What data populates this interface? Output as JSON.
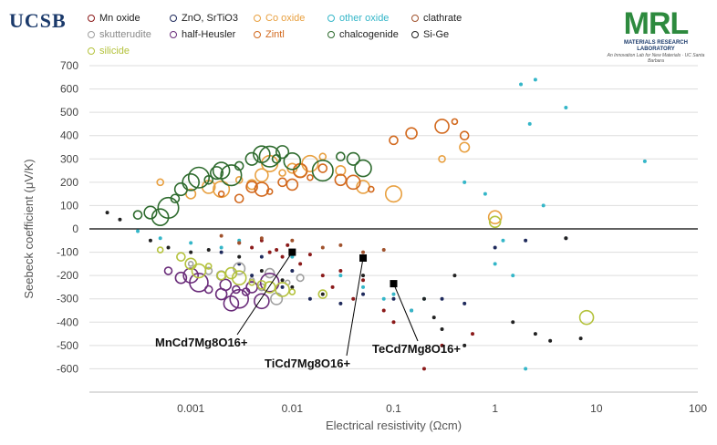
{
  "header": {
    "brand": "UCSB",
    "logo_text": "MRL",
    "logo_subtitle": "MATERIALS RESEARCH LABORATORY",
    "logo_tagline": "An Innovation Lab for New Materials · UC Santa Barbara"
  },
  "colors": {
    "Mn oxide": "#8b1a1a",
    "ZnO, SrTiO3": "#1f2a5c",
    "Co oxide": "#e8a040",
    "other oxide": "#35b6c8",
    "clathrate": "#a0522d",
    "skutterudite": "#a0a0a0",
    "half-Heusler": "#6a2c7a",
    "Zintl": "#d2691e",
    "chalcogenide": "#2e6b2e",
    "Si-Ge": "#222222",
    "silicide": "#b4c23c"
  },
  "chart_data": {
    "type": "scatter",
    "xlabel": "Electrical resistivity (Ωcm)",
    "ylabel": "Seebeck coefficient (μV/K)",
    "xscale": "log",
    "xlim": [
      0.0001,
      100
    ],
    "ylim": [
      -700,
      700
    ],
    "x_ticks": [
      "0.001",
      "0.01",
      "0.1",
      "1",
      "10",
      "100"
    ],
    "y_ticks": [
      700,
      600,
      500,
      400,
      300,
      200,
      100,
      0,
      -100,
      -200,
      -300,
      -400,
      -500,
      -600
    ],
    "legend_position": "top",
    "series": [
      {
        "name": "Mn oxide",
        "points": [
          [
            0.003,
            -60
          ],
          [
            0.004,
            -80
          ],
          [
            0.005,
            -50
          ],
          [
            0.006,
            -100
          ],
          [
            0.007,
            -90
          ],
          [
            0.008,
            -120
          ],
          [
            0.009,
            -70
          ],
          [
            0.012,
            -150
          ],
          [
            0.015,
            -110
          ],
          [
            0.02,
            -200
          ],
          [
            0.025,
            -250
          ],
          [
            0.03,
            -180
          ],
          [
            0.04,
            -300
          ],
          [
            0.05,
            -220
          ],
          [
            0.08,
            -350
          ],
          [
            0.1,
            -400
          ],
          [
            0.2,
            -600
          ],
          [
            0.3,
            -500
          ],
          [
            0.6,
            -450
          ]
        ]
      },
      {
        "name": "ZnO, SrTiO3",
        "points": [
          [
            0.002,
            -100
          ],
          [
            0.003,
            -150
          ],
          [
            0.004,
            -200
          ],
          [
            0.005,
            -120
          ],
          [
            0.008,
            -250
          ],
          [
            0.01,
            -180
          ],
          [
            0.015,
            -300
          ],
          [
            0.03,
            -320
          ],
          [
            0.05,
            -280
          ],
          [
            0.1,
            -300
          ],
          [
            0.15,
            -350
          ],
          [
            0.3,
            -300
          ],
          [
            0.5,
            -320
          ],
          [
            1.0,
            -80
          ],
          [
            2.0,
            -50
          ],
          [
            5.0,
            -40
          ]
        ]
      },
      {
        "name": "Co oxide",
        "points": [
          [
            0.0005,
            200
          ],
          [
            0.001,
            150
          ],
          [
            0.0015,
            180
          ],
          [
            0.002,
            170
          ],
          [
            0.003,
            210
          ],
          [
            0.004,
            190
          ],
          [
            0.005,
            230
          ],
          [
            0.006,
            280
          ],
          [
            0.008,
            240
          ],
          [
            0.01,
            260
          ],
          [
            0.012,
            250
          ],
          [
            0.015,
            280
          ],
          [
            0.02,
            310
          ],
          [
            0.03,
            250
          ],
          [
            0.05,
            180
          ],
          [
            0.1,
            150
          ],
          [
            0.3,
            300
          ],
          [
            0.5,
            350
          ],
          [
            1.0,
            50
          ]
        ]
      },
      {
        "name": "other oxide",
        "points": [
          [
            0.0003,
            -10
          ],
          [
            0.0005,
            -40
          ],
          [
            0.001,
            -60
          ],
          [
            0.002,
            -80
          ],
          [
            0.003,
            -50
          ],
          [
            0.01,
            -120
          ],
          [
            0.03,
            -200
          ],
          [
            0.05,
            -250
          ],
          [
            0.08,
            -300
          ],
          [
            0.1,
            -280
          ],
          [
            0.15,
            -350
          ],
          [
            0.2,
            -300
          ],
          [
            0.5,
            200
          ],
          [
            0.8,
            150
          ],
          [
            1.0,
            -150
          ],
          [
            1.2,
            -50
          ],
          [
            1.5,
            -200
          ],
          [
            1.8,
            620
          ],
          [
            2.0,
            -600
          ],
          [
            2.5,
            640
          ],
          [
            3.0,
            100
          ],
          [
            5.0,
            520
          ],
          [
            30,
            290
          ],
          [
            2.2,
            450
          ]
        ]
      },
      {
        "name": "clathrate",
        "points": [
          [
            0.002,
            -30
          ],
          [
            0.003,
            -60
          ],
          [
            0.005,
            -40
          ],
          [
            0.01,
            -50
          ],
          [
            0.02,
            -80
          ],
          [
            0.03,
            -70
          ],
          [
            0.05,
            -100
          ],
          [
            0.08,
            -90
          ]
        ]
      },
      {
        "name": "skutterudite",
        "points": [
          [
            0.001,
            -150
          ],
          [
            0.0015,
            -180
          ],
          [
            0.002,
            -200
          ],
          [
            0.003,
            -170
          ],
          [
            0.004,
            -220
          ],
          [
            0.005,
            -250
          ],
          [
            0.006,
            -190
          ],
          [
            0.007,
            -300
          ],
          [
            0.009,
            -230
          ],
          [
            0.012,
            -210
          ]
        ]
      },
      {
        "name": "half-Heusler",
        "points": [
          [
            0.0006,
            -180
          ],
          [
            0.0008,
            -210
          ],
          [
            0.001,
            -200
          ],
          [
            0.0012,
            -230
          ],
          [
            0.0015,
            -260
          ],
          [
            0.002,
            -280
          ],
          [
            0.0025,
            -320
          ],
          [
            0.003,
            -300
          ],
          [
            0.0035,
            -270
          ],
          [
            0.004,
            -250
          ],
          [
            0.005,
            -310
          ],
          [
            0.006,
            -230
          ],
          [
            0.0028,
            -260
          ],
          [
            0.0022,
            -240
          ]
        ]
      },
      {
        "name": "Zintl",
        "points": [
          [
            0.002,
            150
          ],
          [
            0.003,
            130
          ],
          [
            0.004,
            180
          ],
          [
            0.005,
            170
          ],
          [
            0.006,
            160
          ],
          [
            0.008,
            200
          ],
          [
            0.01,
            190
          ],
          [
            0.012,
            250
          ],
          [
            0.015,
            220
          ],
          [
            0.02,
            260
          ],
          [
            0.03,
            210
          ],
          [
            0.04,
            200
          ],
          [
            0.06,
            170
          ],
          [
            0.1,
            380
          ],
          [
            0.15,
            410
          ],
          [
            0.3,
            440
          ],
          [
            0.4,
            460
          ],
          [
            0.5,
            400
          ]
        ]
      },
      {
        "name": "chalcogenide",
        "points": [
          [
            0.0003,
            60
          ],
          [
            0.0004,
            70
          ],
          [
            0.0005,
            50
          ],
          [
            0.0006,
            90
          ],
          [
            0.0007,
            130
          ],
          [
            0.0008,
            170
          ],
          [
            0.001,
            200
          ],
          [
            0.0012,
            220
          ],
          [
            0.0015,
            210
          ],
          [
            0.0018,
            240
          ],
          [
            0.002,
            250
          ],
          [
            0.0025,
            230
          ],
          [
            0.003,
            270
          ],
          [
            0.004,
            300
          ],
          [
            0.005,
            320
          ],
          [
            0.006,
            310
          ],
          [
            0.007,
            300
          ],
          [
            0.008,
            330
          ],
          [
            0.01,
            290
          ],
          [
            0.02,
            250
          ],
          [
            0.03,
            310
          ],
          [
            0.04,
            300
          ],
          [
            0.05,
            260
          ]
        ]
      },
      {
        "name": "Si-Ge",
        "points": [
          [
            0.00015,
            70
          ],
          [
            0.0002,
            40
          ],
          [
            0.0004,
            -50
          ],
          [
            0.0006,
            -80
          ],
          [
            0.001,
            -100
          ],
          [
            0.0015,
            -90
          ],
          [
            0.003,
            -120
          ],
          [
            0.005,
            -180
          ],
          [
            0.008,
            -220
          ],
          [
            0.01,
            -250
          ],
          [
            0.02,
            -280
          ],
          [
            0.05,
            -200
          ],
          [
            0.1,
            -240
          ],
          [
            0.2,
            -300
          ],
          [
            0.25,
            -380
          ],
          [
            0.3,
            -430
          ],
          [
            0.4,
            -200
          ],
          [
            0.5,
            -500
          ],
          [
            1.5,
            -400
          ],
          [
            2.5,
            -450
          ],
          [
            3.5,
            -480
          ],
          [
            5.0,
            -40
          ],
          [
            7.0,
            -470
          ]
        ]
      },
      {
        "name": "silicide",
        "points": [
          [
            0.0005,
            -90
          ],
          [
            0.0008,
            -120
          ],
          [
            0.001,
            -150
          ],
          [
            0.0012,
            -180
          ],
          [
            0.0015,
            -160
          ],
          [
            0.002,
            -200
          ],
          [
            0.0025,
            -190
          ],
          [
            0.003,
            -210
          ],
          [
            0.004,
            -230
          ],
          [
            0.005,
            -240
          ],
          [
            0.006,
            -250
          ],
          [
            0.008,
            -260
          ],
          [
            0.01,
            -270
          ],
          [
            0.02,
            -280
          ],
          [
            1.0,
            30
          ],
          [
            8.0,
            -380
          ]
        ]
      }
    ],
    "highlights": [
      {
        "label": "MnCd7Mg8O16+",
        "x": 0.01,
        "y": -100
      },
      {
        "label": "TiCd7Mg8O16+",
        "x": 0.05,
        "y": -125
      },
      {
        "label": "TeCd7Mg8O16+",
        "x": 0.1,
        "y": -235
      }
    ]
  }
}
